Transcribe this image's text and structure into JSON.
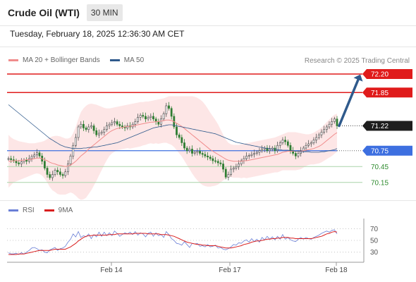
{
  "header": {
    "title": "Crude Oil (WTI)",
    "timeframe": "30 MIN"
  },
  "datetime": "Tuesday, February 18, 2025 12:36:30 AM CET",
  "legend": {
    "ma20": {
      "label": "MA 20 + Bollinger Bands",
      "color": "#f08c8c"
    },
    "ma50": {
      "label": "MA 50",
      "color": "#2f5a8c"
    }
  },
  "copyright": "Research © 2025 Trading Central",
  "rsi_legend": {
    "rsi": {
      "label": "RSI",
      "color": "#6a7fd6"
    },
    "ma9": {
      "label": "9MA",
      "color": "#d91e1e"
    }
  },
  "chart_data": [
    {
      "type": "candlestick",
      "title": "Crude Oil (WTI)",
      "ylim": [
        70.0,
        72.32
      ],
      "x_ticks": [
        "Feb 14",
        "Feb 17",
        "Feb 18"
      ],
      "levels": [
        {
          "value": 72.2,
          "label": "72.20",
          "style": "resistance",
          "color": "#e01b1b"
        },
        {
          "value": 71.85,
          "label": "71.85",
          "style": "resistance",
          "color": "#e01b1b"
        },
        {
          "value": 71.22,
          "label": "71.22",
          "style": "last",
          "color": "#222222"
        },
        {
          "value": 70.75,
          "label": "70.75",
          "style": "pivot",
          "color": "#3d6fe0"
        },
        {
          "value": 70.45,
          "label": "70.45",
          "style": "support",
          "color": "#2e8b2e"
        },
        {
          "value": 70.15,
          "label": "70.15",
          "style": "support",
          "color": "#2e8b2e"
        }
      ],
      "target_arrow": {
        "from": 71.22,
        "to": 72.2,
        "color": "#2f5a8c"
      },
      "close": [
        70.6,
        70.58,
        70.56,
        70.52,
        70.5,
        70.54,
        70.57,
        70.55,
        70.6,
        70.64,
        70.67,
        70.71,
        70.65,
        70.55,
        70.42,
        70.3,
        70.24,
        70.3,
        70.38,
        70.35,
        70.3,
        70.28,
        70.35,
        70.5,
        70.65,
        70.85,
        71.0,
        71.2,
        71.25,
        71.18,
        71.15,
        71.2,
        71.22,
        71.13,
        71.05,
        71.08,
        71.1,
        71.15,
        71.22,
        71.25,
        71.28,
        71.3,
        71.25,
        71.22,
        71.2,
        71.18,
        71.22,
        71.2,
        71.25,
        71.3,
        71.38,
        71.42,
        71.4,
        71.35,
        71.38,
        71.4,
        71.35,
        71.3,
        71.25,
        71.35,
        71.45,
        71.6,
        71.55,
        71.4,
        71.2,
        71.05,
        71.0,
        70.9,
        70.8,
        70.75,
        70.78,
        70.7,
        70.72,
        70.74,
        70.7,
        70.68,
        70.65,
        70.63,
        70.6,
        70.56,
        70.55,
        70.52,
        70.5,
        70.4,
        70.25,
        70.3,
        70.4,
        70.42,
        70.45,
        70.5,
        70.56,
        70.6,
        70.65,
        70.66,
        70.68,
        70.7,
        70.72,
        70.75,
        70.78,
        70.8,
        70.75,
        70.78,
        70.8,
        70.75,
        70.85,
        70.9,
        70.95,
        70.92,
        70.85,
        70.75,
        70.7,
        70.65,
        70.7,
        70.75,
        70.8,
        70.85,
        70.88,
        70.9,
        70.95,
        71.0,
        71.05,
        71.1,
        71.15,
        71.2,
        71.25,
        71.3,
        71.35,
        71.22
      ],
      "ma20": [
        70.55,
        70.55,
        70.56,
        70.56,
        70.56,
        70.57,
        70.57,
        70.58,
        70.58,
        70.59,
        70.6,
        70.61,
        70.61,
        70.6,
        70.58,
        70.56,
        70.53,
        70.51,
        70.5,
        70.48,
        70.47,
        70.46,
        70.45,
        70.46,
        70.48,
        70.51,
        70.55,
        70.6,
        70.65,
        70.69,
        70.73,
        70.78,
        70.82,
        70.86,
        70.9,
        70.94,
        70.98,
        71.02,
        71.06,
        71.1,
        71.13,
        71.15,
        71.17,
        71.18,
        71.19,
        71.2,
        71.21,
        71.21,
        71.22,
        71.23,
        71.24,
        71.25,
        71.26,
        71.27,
        71.28,
        71.29,
        71.29,
        71.3,
        71.3,
        71.31,
        71.32,
        71.33,
        71.33,
        71.32,
        71.3,
        71.27,
        71.24,
        71.21,
        71.17,
        71.13,
        71.09,
        71.05,
        71.01,
        70.97,
        70.93,
        70.89,
        70.85,
        70.81,
        70.77,
        70.74,
        70.71,
        70.68,
        70.65,
        70.62,
        70.59,
        70.57,
        70.56,
        70.55,
        70.55,
        70.55,
        70.55,
        70.56,
        70.56,
        70.57,
        70.58,
        70.59,
        70.6,
        70.61,
        70.62,
        70.63,
        70.64,
        70.65,
        70.66,
        70.67,
        70.68,
        70.7,
        70.72,
        70.73,
        70.74,
        70.74,
        70.74,
        70.74,
        70.74,
        70.74,
        70.75,
        70.76,
        70.77,
        70.78,
        70.79,
        70.81,
        70.83,
        70.86,
        70.9,
        70.94,
        70.98,
        71.02,
        71.06,
        71.09
      ],
      "bb_upper": [
        71.05,
        71.0,
        70.97,
        70.95,
        70.93,
        70.92,
        70.91,
        70.9,
        70.89,
        70.89,
        70.89,
        70.9,
        70.91,
        70.92,
        70.94,
        70.97,
        71.0,
        71.02,
        71.03,
        71.03,
        71.02,
        71.0,
        70.98,
        70.98,
        71.0,
        71.08,
        71.2,
        71.35,
        71.48,
        71.55,
        71.6,
        71.63,
        71.64,
        71.63,
        71.62,
        71.6,
        71.58,
        71.56,
        71.55,
        71.55,
        71.56,
        71.57,
        71.58,
        71.59,
        71.6,
        71.61,
        71.62,
        71.63,
        71.64,
        71.65,
        71.66,
        71.67,
        71.67,
        71.68,
        71.68,
        71.69,
        71.7,
        71.71,
        71.72,
        71.73,
        71.74,
        71.76,
        71.78,
        71.78,
        71.78,
        71.78,
        71.78,
        71.78,
        71.78,
        71.78,
        71.78,
        71.78,
        71.77,
        71.75,
        71.72,
        71.68,
        71.62,
        71.55,
        71.47,
        71.4,
        71.33,
        71.25,
        71.15,
        71.05,
        70.96,
        70.9,
        70.87,
        70.86,
        70.86,
        70.86,
        70.87,
        70.88,
        70.89,
        70.9,
        70.91,
        70.92,
        70.93,
        70.94,
        70.95,
        70.96,
        70.97,
        70.98,
        70.99,
        71.0,
        71.02,
        71.04,
        71.06,
        71.08,
        71.1,
        71.1,
        71.1,
        71.1,
        71.09,
        71.08,
        71.07,
        71.06,
        71.06,
        71.07,
        71.09,
        71.12,
        71.15,
        71.19,
        71.24,
        71.29,
        71.34,
        71.39,
        71.43,
        71.45
      ],
      "bb_lower": [
        70.05,
        70.1,
        70.15,
        70.17,
        70.19,
        70.21,
        70.23,
        70.25,
        70.27,
        70.29,
        70.31,
        70.32,
        70.31,
        70.28,
        70.22,
        70.15,
        70.06,
        70.0,
        69.97,
        69.93,
        69.92,
        69.92,
        69.92,
        69.94,
        69.96,
        69.94,
        69.9,
        69.85,
        69.82,
        69.83,
        69.86,
        69.93,
        70.0,
        70.09,
        70.18,
        70.28,
        70.38,
        70.48,
        70.57,
        70.65,
        70.7,
        70.73,
        70.76,
        70.77,
        70.78,
        70.79,
        70.8,
        70.79,
        70.8,
        70.81,
        70.82,
        70.83,
        70.85,
        70.86,
        70.88,
        70.89,
        70.88,
        70.89,
        70.88,
        70.89,
        70.9,
        70.9,
        70.88,
        70.86,
        70.82,
        70.76,
        70.7,
        70.64,
        70.56,
        70.48,
        70.4,
        70.32,
        70.25,
        70.19,
        70.14,
        70.1,
        70.08,
        70.07,
        70.07,
        70.08,
        70.09,
        70.11,
        70.15,
        70.19,
        70.22,
        70.24,
        70.25,
        70.24,
        70.24,
        70.24,
        70.23,
        70.24,
        70.23,
        70.24,
        70.25,
        70.26,
        70.27,
        70.28,
        70.29,
        70.3,
        70.31,
        70.32,
        70.33,
        70.34,
        70.34,
        70.36,
        70.38,
        70.38,
        70.38,
        70.38,
        70.38,
        70.38,
        70.39,
        70.4,
        70.43,
        70.46,
        70.48,
        70.49,
        70.49,
        70.5,
        70.51,
        70.53,
        70.56,
        70.59,
        70.62,
        70.65,
        70.69,
        70.73
      ],
      "ma50": [
        71.62,
        71.58,
        71.54,
        71.5,
        71.46,
        71.42,
        71.38,
        71.34,
        71.3,
        71.26,
        71.22,
        71.18,
        71.14,
        71.1,
        71.06,
        71.02,
        70.98,
        70.95,
        70.92,
        70.89,
        70.86,
        70.84,
        70.82,
        70.81,
        70.8,
        70.79,
        70.79,
        70.79,
        70.79,
        70.8,
        70.8,
        70.81,
        70.81,
        70.82,
        70.82,
        70.83,
        70.84,
        70.85,
        70.86,
        70.87,
        70.88,
        70.89,
        70.9,
        70.92,
        70.94,
        70.96,
        70.98,
        71.0,
        71.02,
        71.04,
        71.06,
        71.08,
        71.1,
        71.12,
        71.14,
        71.16,
        71.18,
        71.19,
        71.2,
        71.21,
        71.22,
        71.23,
        71.24,
        71.24,
        71.23,
        71.22,
        71.21,
        71.2,
        71.19,
        71.18,
        71.17,
        71.16,
        71.15,
        71.14,
        71.13,
        71.12,
        71.11,
        71.1,
        71.09,
        71.08,
        71.07,
        71.05,
        71.03,
        71.01,
        70.99,
        70.97,
        70.95,
        70.93,
        70.91,
        70.9,
        70.89,
        70.88,
        70.87,
        70.86,
        70.85,
        70.84,
        70.83,
        70.82,
        70.81,
        70.8,
        70.79,
        70.79,
        70.78,
        70.78,
        70.77,
        70.77,
        70.76,
        70.76,
        70.76,
        70.75,
        70.75,
        70.74,
        70.74,
        70.73,
        70.73,
        70.73,
        70.73,
        70.72,
        70.72,
        70.72,
        70.72,
        70.73,
        70.73,
        70.74,
        70.75,
        70.76,
        70.77,
        70.79
      ]
    },
    {
      "type": "line",
      "title": "RSI",
      "ylim": [
        20,
        80
      ],
      "y_ticks": [
        70,
        50,
        30
      ],
      "series": [
        {
          "name": "RSI",
          "color": "#6a7fd6",
          "values": [
            29,
            27,
            27,
            28,
            26,
            29,
            27,
            30,
            33,
            37,
            38,
            36,
            33,
            34,
            30,
            29,
            34,
            36,
            38,
            33,
            36,
            37,
            40,
            47,
            52,
            61,
            56,
            65,
            55,
            58,
            56,
            61,
            53,
            60,
            56,
            64,
            57,
            64,
            58,
            63,
            58,
            66,
            62,
            57,
            60,
            63,
            61,
            64,
            60,
            65,
            59,
            63,
            61,
            56,
            62,
            64,
            57,
            63,
            58,
            60,
            55,
            65,
            60,
            53,
            50,
            45,
            44,
            42,
            48,
            43,
            38,
            45,
            44,
            45,
            40,
            41,
            39,
            43,
            39,
            40,
            42,
            37,
            38,
            35,
            34,
            36,
            39,
            43,
            42,
            46,
            45,
            49,
            51,
            47,
            53,
            48,
            52,
            47,
            55,
            51,
            57,
            52,
            56,
            51,
            57,
            52,
            60,
            52,
            55,
            51,
            49,
            48,
            52,
            55,
            52,
            55,
            53,
            52,
            55,
            57,
            59,
            62,
            64,
            66,
            64,
            67,
            68,
            61
          ]
        },
        {
          "name": "9MA",
          "color": "#d91e1e",
          "values": [
            26,
            26,
            26,
            26,
            27,
            27,
            27,
            28,
            29,
            30,
            31,
            32,
            33,
            33,
            33,
            33,
            33,
            34,
            35,
            35,
            35,
            35,
            35,
            37,
            39,
            42,
            45,
            49,
            52,
            55,
            57,
            58,
            58,
            59,
            59,
            59,
            59,
            59,
            59,
            60,
            60,
            60,
            61,
            61,
            61,
            61,
            61,
            61,
            61,
            62,
            62,
            62,
            62,
            62,
            61,
            61,
            61,
            61,
            61,
            60,
            60,
            60,
            59,
            58,
            57,
            55,
            53,
            51,
            49,
            47,
            46,
            45,
            44,
            43,
            43,
            42,
            42,
            41,
            41,
            41,
            41,
            40,
            39,
            38,
            37,
            37,
            37,
            38,
            39,
            40,
            41,
            43,
            44,
            45,
            47,
            48,
            49,
            49,
            50,
            51,
            52,
            52,
            53,
            53,
            54,
            54,
            55,
            55,
            55,
            54,
            54,
            53,
            53,
            53,
            53,
            53,
            53,
            53,
            54,
            55,
            56,
            57,
            59,
            61,
            62,
            64,
            65,
            64
          ]
        }
      ]
    }
  ]
}
